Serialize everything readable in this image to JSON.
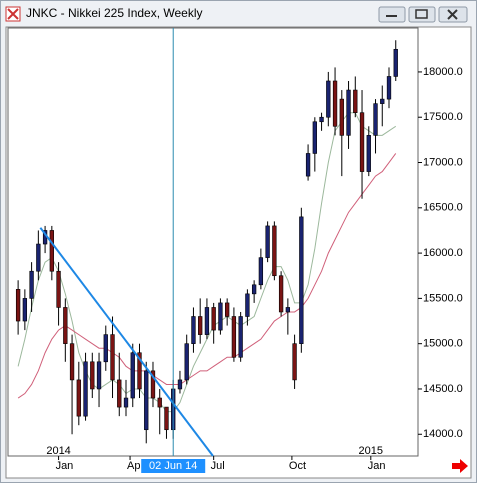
{
  "window_title": "JNKC - Nikkei 225 Index, Weekly",
  "chart_data": {
    "type": "candlestick",
    "open": [
      15600,
      15250,
      15500,
      15800,
      16100,
      16250,
      15800,
      15400,
      15000,
      14600,
      14200,
      14800,
      14500,
      14800,
      15100,
      14600,
      14300,
      14400,
      14900,
      14050,
      14700,
      14400,
      14300,
      14050,
      14500,
      14600,
      15000,
      15300,
      15100,
      15400,
      15150,
      15450,
      15300,
      14850,
      15300,
      15550,
      15650,
      15950,
      16300,
      15750,
      15350,
      15000,
      15000,
      16850,
      17100,
      17450,
      17500,
      17900,
      17700,
      17300,
      17800,
      17550,
      16900,
      17300,
      17650,
      17700,
      17950
    ],
    "high": [
      15700,
      15600,
      15900,
      16250,
      16300,
      16300,
      15900,
      15500,
      15100,
      14800,
      14900,
      14900,
      14900,
      15200,
      15300,
      14900,
      14600,
      15000,
      15000,
      14800,
      14800,
      14500,
      14300,
      14600,
      14700,
      15100,
      15400,
      15500,
      15500,
      15450,
      15500,
      15500,
      15400,
      15350,
      15600,
      15700,
      16050,
      16350,
      16350,
      15800,
      15500,
      15100,
      16500,
      17200,
      17500,
      17550,
      18000,
      18050,
      17800,
      17900,
      17950,
      17800,
      17400,
      17700,
      17850,
      18050,
      18350
    ],
    "low": [
      15100,
      15150,
      15350,
      15700,
      16000,
      15700,
      15200,
      14800,
      14000,
      14100,
      14150,
      14400,
      14300,
      14700,
      14400,
      14200,
      14200,
      14300,
      14400,
      13900,
      14300,
      14000,
      13950,
      13950,
      14450,
      14550,
      14900,
      15000,
      15050,
      15000,
      15100,
      15200,
      14800,
      14800,
      15200,
      15450,
      15600,
      15900,
      15700,
      15300,
      15100,
      14500,
      14900,
      16800,
      16900,
      17350,
      17400,
      17300,
      16850,
      17150,
      17500,
      16600,
      16850,
      17100,
      17400,
      17600,
      17900
    ],
    "close": [
      15250,
      15500,
      15800,
      16100,
      16250,
      15800,
      15400,
      15000,
      14600,
      14200,
      14800,
      14500,
      14800,
      15100,
      14600,
      14300,
      14400,
      14900,
      14500,
      14700,
      14400,
      14300,
      14050,
      14500,
      14600,
      15000,
      15300,
      15100,
      15400,
      15150,
      15450,
      15300,
      14850,
      15300,
      15550,
      15650,
      15950,
      16300,
      15750,
      15350,
      15400,
      14600,
      16400,
      17100,
      17450,
      17500,
      17900,
      17400,
      17300,
      17800,
      17550,
      16900,
      17300,
      17650,
      17700,
      17950,
      18250
    ],
    "up_color": "#1a2370",
    "down_color": "#7a1414",
    "ma": [
      {
        "color": "#9cb89c",
        "values": [
          14750,
          15050,
          15400,
          15700,
          15900,
          15950,
          15800,
          15550,
          15250,
          14900,
          14700,
          14550,
          14500,
          14550,
          14600,
          14550,
          14450,
          14500,
          14500,
          14400,
          14400,
          14350,
          14250,
          14250,
          14350,
          14550,
          14750,
          14900,
          15050,
          15200,
          15250,
          15300,
          15250,
          15200,
          15250,
          15300,
          15500,
          15700,
          15850,
          15850,
          15700,
          15450,
          15450,
          15650,
          16050,
          16550,
          17000,
          17350,
          17450,
          17550,
          17550,
          17400,
          17350,
          17300,
          17300,
          17350,
          17400
        ]
      },
      {
        "color": "#d0607a",
        "values": [
          14400,
          14450,
          14550,
          14700,
          14900,
          15050,
          15150,
          15200,
          15150,
          15100,
          15050,
          15000,
          14950,
          14950,
          14900,
          14850,
          14750,
          14700,
          14700,
          14700,
          14650,
          14600,
          14550,
          14550,
          14550,
          14600,
          14650,
          14700,
          14700,
          14750,
          14800,
          14850,
          14850,
          14900,
          14950,
          15000,
          15050,
          15150,
          15250,
          15300,
          15350,
          15350,
          15400,
          15500,
          15650,
          15800,
          16000,
          16150,
          16300,
          16450,
          16550,
          16650,
          16750,
          16850,
          16900,
          17000,
          17100
        ]
      }
    ],
    "trendline": {
      "x": [
        3.3,
        28.9
      ],
      "y": [
        16280,
        13760
      ],
      "color": "#1e88e5"
    },
    "cursor": {
      "x": 23,
      "label": "02 Jun 14"
    },
    "xlim": [
      -1.5,
      59.3
    ],
    "xticks": [
      {
        "value": 6,
        "label": "Jan"
      },
      {
        "value": 16.6,
        "label": "Ap"
      },
      {
        "value": 29,
        "label": "Jul"
      },
      {
        "value": 40.6,
        "label": "Oct"
      },
      {
        "value": 52.3,
        "label": "Jan"
      }
    ],
    "year_labels": [
      {
        "value": 6,
        "label": "2014"
      },
      {
        "value": 52.3,
        "label": "2015"
      }
    ],
    "ylim": [
      13760,
      18485
    ],
    "yticks": [
      {
        "value": 14000,
        "label": "14000.0"
      },
      {
        "value": 14500,
        "label": "14500.0"
      },
      {
        "value": 15000,
        "label": "15000.0"
      },
      {
        "value": 15500,
        "label": "15500.0"
      },
      {
        "value": 16000,
        "label": "16000.0"
      },
      {
        "value": 16500,
        "label": "16500.0"
      },
      {
        "value": 17000,
        "label": "17000.0"
      },
      {
        "value": 17500,
        "label": "17500.0"
      },
      {
        "value": 18000,
        "label": "18000.0"
      }
    ]
  }
}
